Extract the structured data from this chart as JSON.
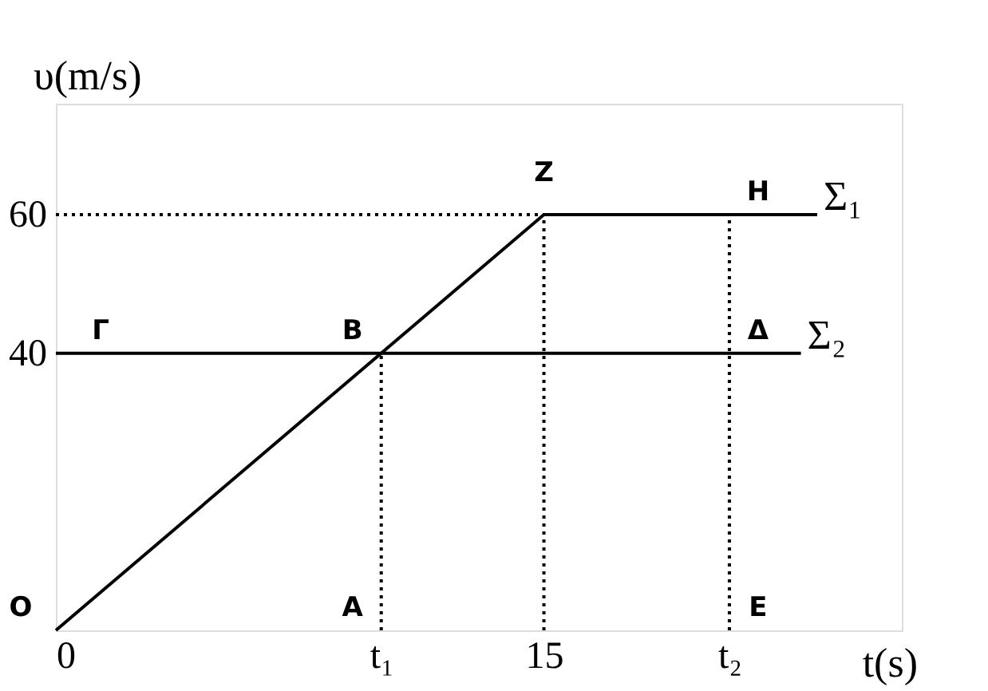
{
  "chart_data": {
    "type": "line",
    "xlabel": "t(s)",
    "ylabel": "υ(m/s)",
    "xlim": [
      0,
      26
    ],
    "ylim": [
      0,
      76
    ],
    "xticks": [
      0,
      {
        "value": 10,
        "label": "t₁"
      },
      15,
      {
        "value": 20.7,
        "label": "t₂"
      }
    ],
    "yticks": [
      40,
      60
    ],
    "grid": false,
    "marker": "none",
    "line_style": "solid",
    "series": [
      {
        "name": "Σ₁",
        "color": "#000000",
        "x": [
          0,
          15,
          23.4
        ],
        "values": [
          0,
          60,
          60
        ]
      },
      {
        "name": "Σ₂",
        "color": "#000000",
        "x": [
          0,
          22.9
        ],
        "values": [
          40,
          40
        ]
      },
      {
        "color": "#000000",
        "line_style": "dotted",
        "x": [
          0,
          15
        ],
        "values": [
          60,
          60
        ]
      },
      {
        "color": "#000000",
        "line_style": "dotted",
        "x": [
          10,
          10
        ],
        "values": [
          0,
          40
        ]
      },
      {
        "color": "#000000",
        "line_style": "dotted",
        "x": [
          15,
          15
        ],
        "values": [
          0,
          60
        ]
      },
      {
        "color": "#000000",
        "line_style": "dotted",
        "x": [
          20.7,
          20.7
        ],
        "values": [
          0,
          60
        ]
      }
    ],
    "annotations": [
      {
        "text": "O",
        "x": 0,
        "y": 0
      },
      {
        "text": "A",
        "x": 10,
        "y": 0
      },
      {
        "text": "B",
        "x": 10,
        "y": 40
      },
      {
        "text": "Γ",
        "x": 0,
        "y": 40
      },
      {
        "text": "Z",
        "x": 15,
        "y": 60
      },
      {
        "text": "H",
        "x": 20.7,
        "y": 60
      },
      {
        "text": "Δ",
        "x": 20.7,
        "y": 40
      },
      {
        "text": "E",
        "x": 20.7,
        "y": 0
      }
    ]
  }
}
